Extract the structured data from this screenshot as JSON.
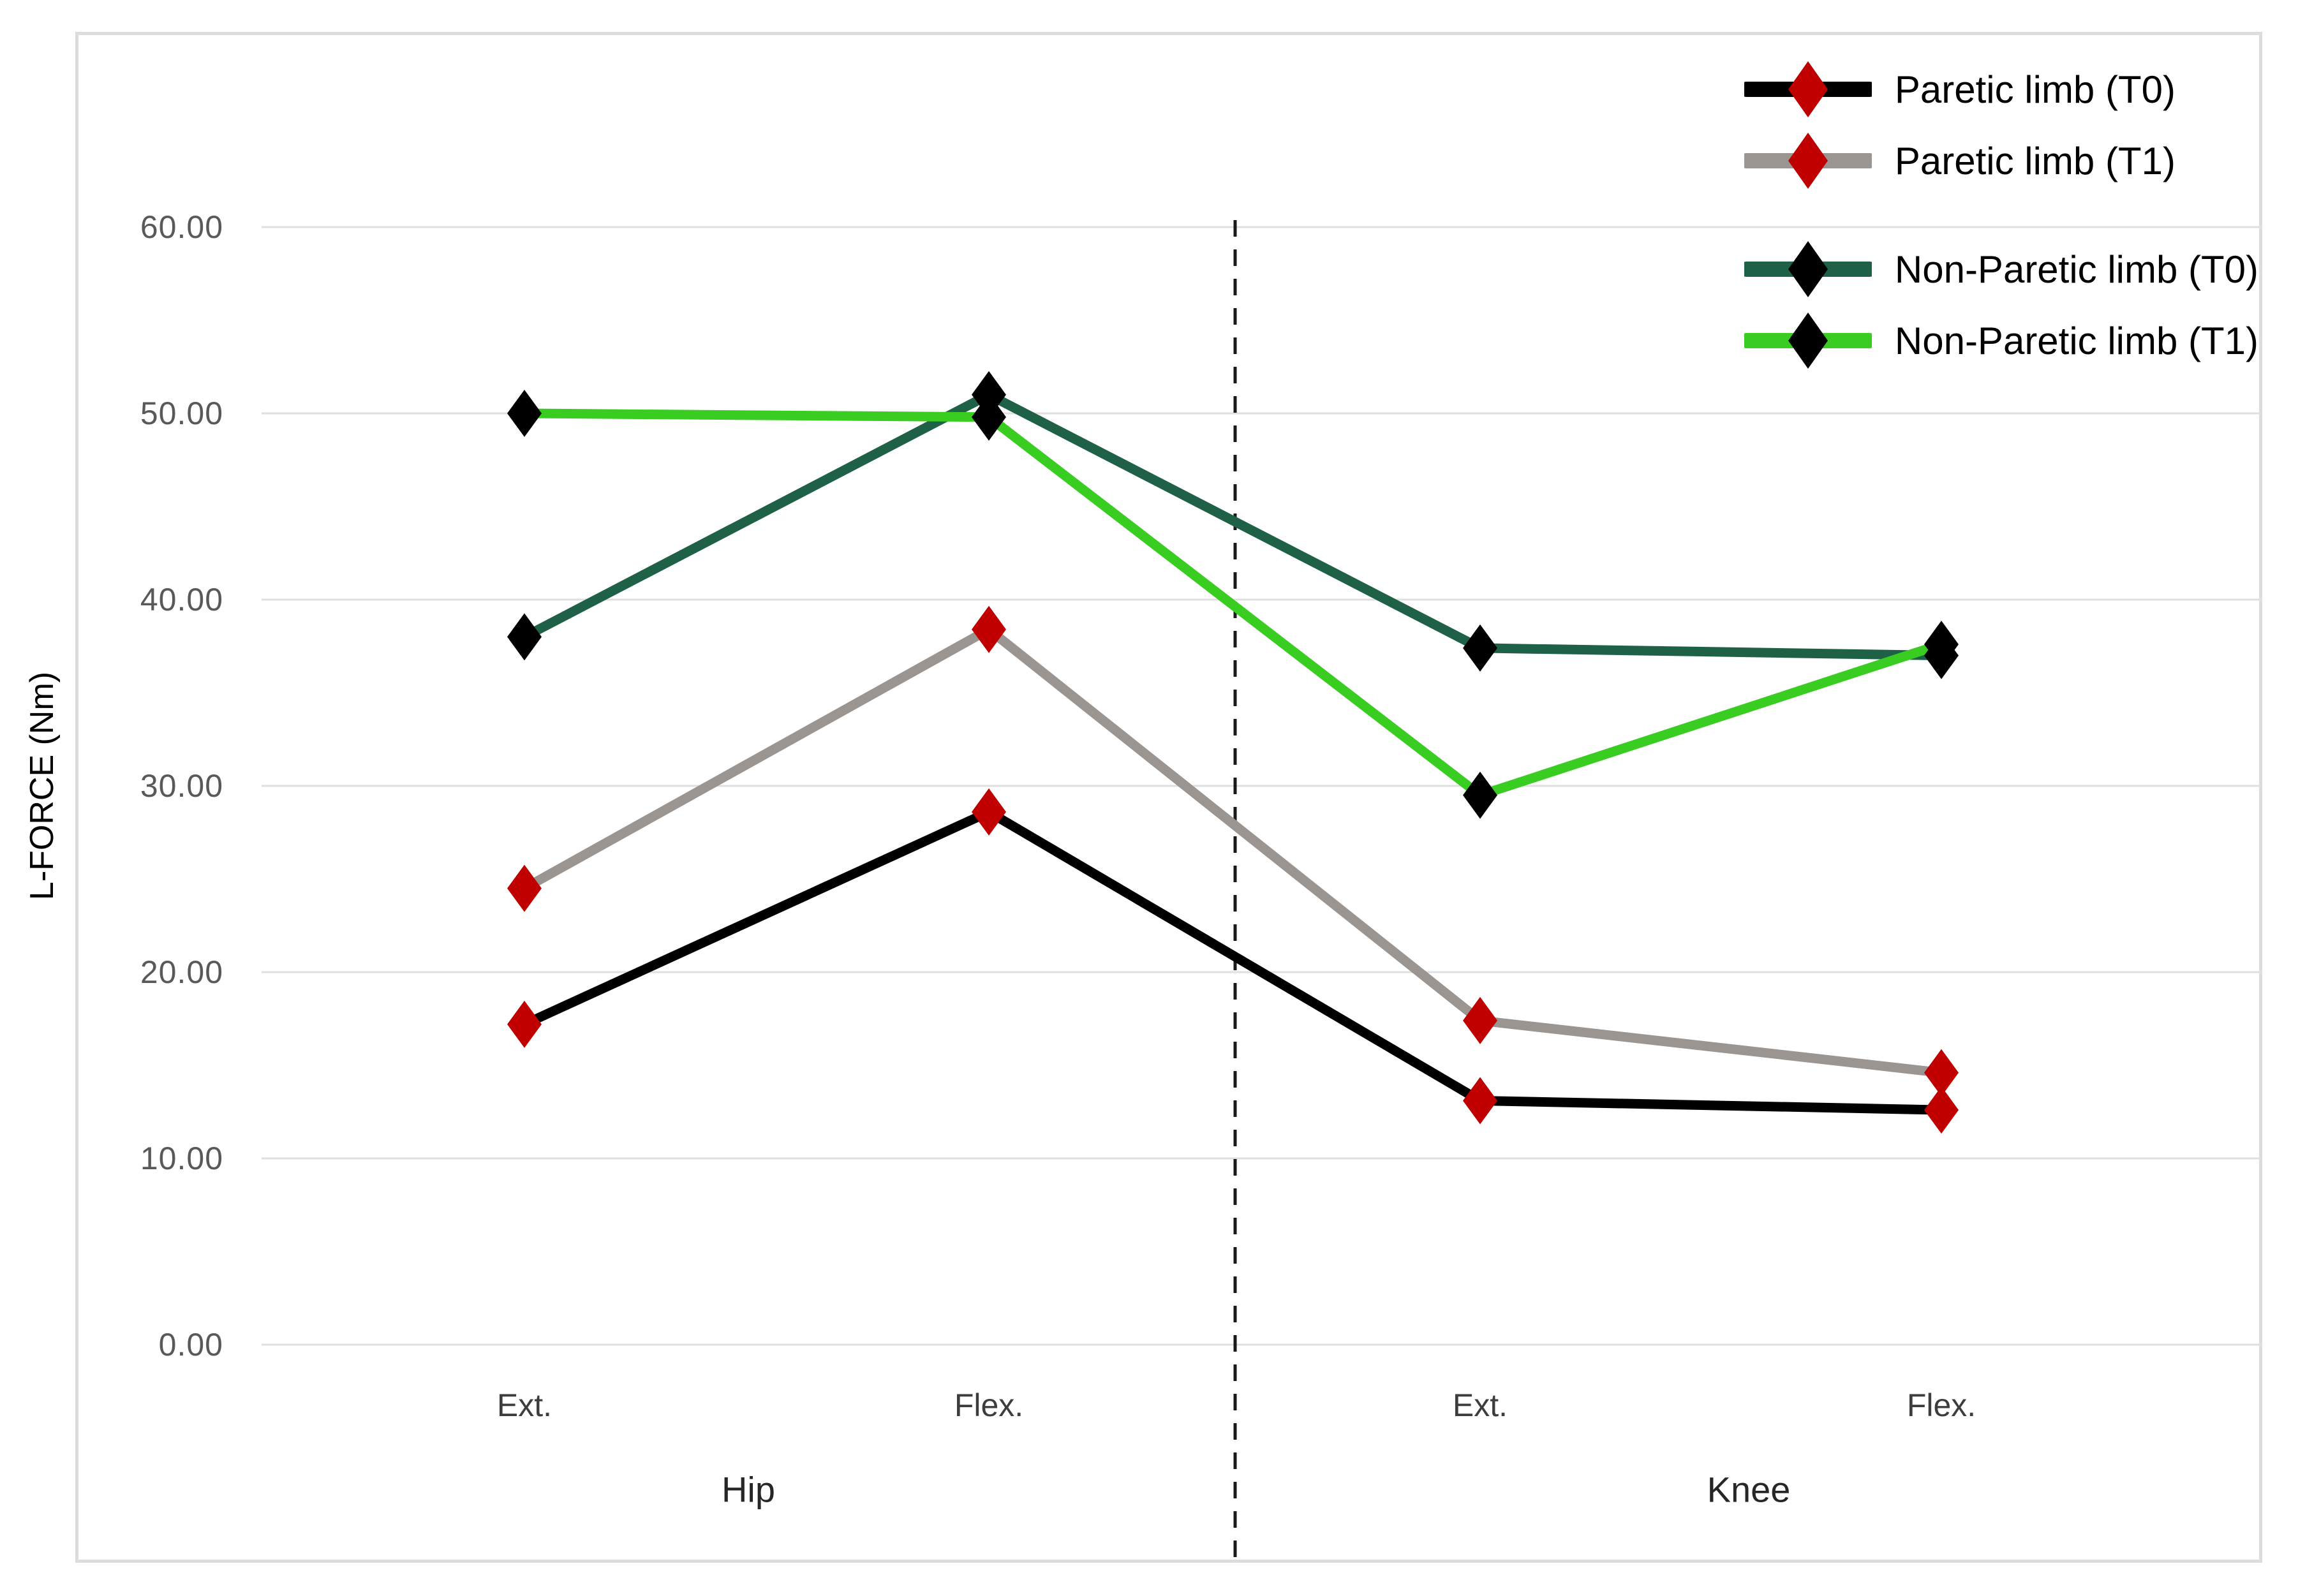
{
  "chart_data": {
    "type": "line",
    "title": "",
    "xlabel": "",
    "ylabel": "L-FORCE (Nm)",
    "ylim": [
      0,
      60
    ],
    "yticks": [
      0,
      10,
      20,
      30,
      40,
      50,
      60
    ],
    "ytick_labels": [
      "0.00",
      "10.00",
      "20.00",
      "30.00",
      "40.00",
      "50.00",
      "60.00"
    ],
    "x_categories": [
      "Ext.",
      "Flex.",
      "Ext.",
      "Flex."
    ],
    "x_groups": [
      "Hip",
      "Knee"
    ],
    "grid": true,
    "legend_position": "top-right",
    "divider": "dashed vertical line separating Hip and Knee sections",
    "series": [
      {
        "name": "Paretic limb (T0)",
        "line_color": "#000000",
        "marker_color": "#c00000",
        "marker": "diamond",
        "values": [
          17.2,
          28.6,
          13.1,
          12.6
        ]
      },
      {
        "name": "Paretic limb (T1)",
        "line_color": "#9b9591",
        "marker_color": "#c00000",
        "marker": "diamond",
        "values": [
          24.5,
          38.4,
          17.4,
          14.6
        ]
      },
      {
        "name": "Non-Paretic limb (T0)",
        "line_color": "#1f6147",
        "marker_color": "#000000",
        "marker": "diamond",
        "values": [
          38.0,
          51.0,
          37.4,
          37.0
        ]
      },
      {
        "name": "Non-Paretic limb (T1)",
        "line_color": "#38cd20",
        "marker_color": "#000000",
        "marker": "diamond",
        "values": [
          50.0,
          49.8,
          29.5,
          37.6
        ]
      }
    ],
    "colors": {
      "gridline": "#dfdfdf",
      "chart_border": "#dcdcdc",
      "tick_text": "#595959",
      "axis_text": "#3d3d3d",
      "legend_text": "#000000",
      "divider": "#1a1a1a",
      "background": "#ffffff"
    }
  }
}
